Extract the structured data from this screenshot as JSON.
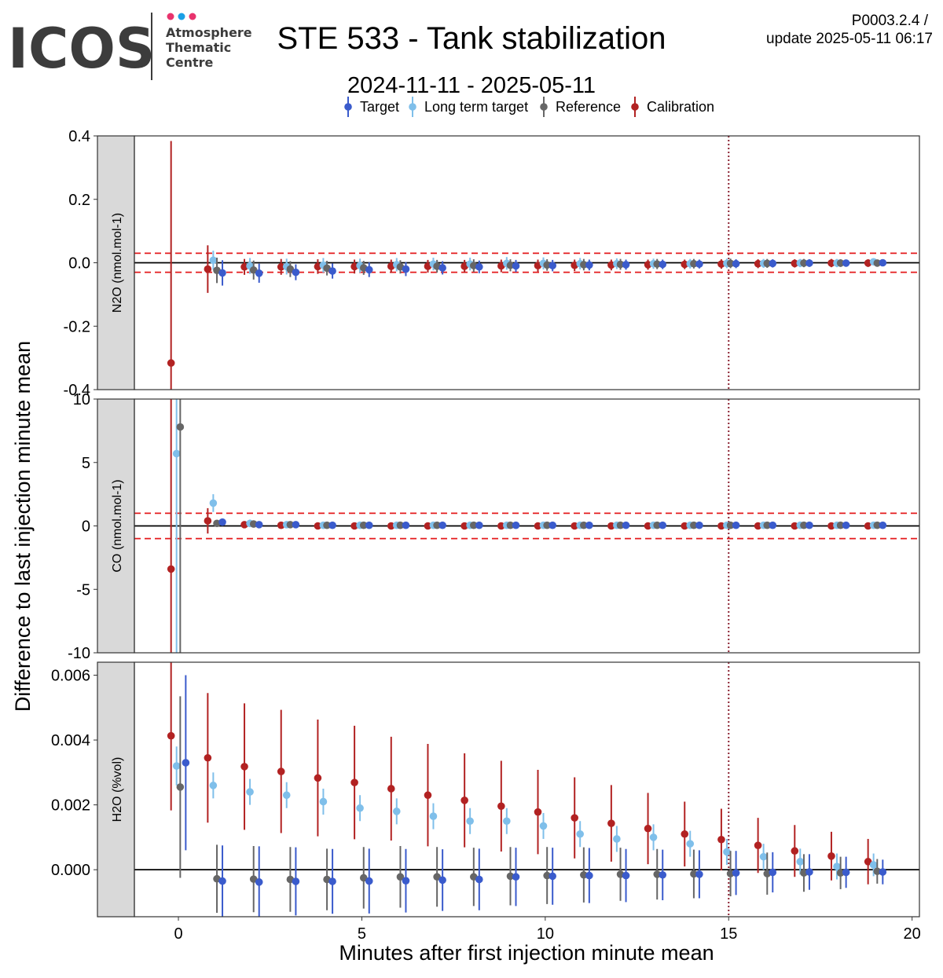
{
  "header": {
    "logo_text": "ICOS",
    "logo_sub": [
      "Atmosphere",
      "Thematic",
      "Centre"
    ],
    "logo_dot_colors": [
      "#e8336d",
      "#1aa0e6",
      "#e8336d"
    ],
    "title": "STE 533 - Tank stabilization",
    "date_range": "2024-11-11 - 2025-05-11",
    "version": "P0003.2.4 /",
    "update": "update  2025-05-11 06:17"
  },
  "colors": {
    "Target": "#3a5bcc",
    "Long term target": "#7fbfea",
    "Reference": "#666666",
    "Calibration": "#b22222",
    "threshold": "#e41a1c",
    "vline": "#8b2332"
  },
  "chart_data": {
    "type": "scatter",
    "xlabel": "Minutes after first injection minute mean",
    "ylabel": "Difference to last injection minute mean",
    "xlim": [
      -1.2,
      20.2
    ],
    "xticks": [
      0,
      5,
      10,
      15,
      20
    ],
    "xtick_labels": [
      "0",
      "5",
      "10",
      "15",
      "20"
    ],
    "vline_x": 15,
    "legend": {
      "position": "top",
      "entries": [
        "Target",
        "Long term target",
        "Reference",
        "Calibration"
      ]
    },
    "x": [
      0,
      1,
      2,
      3,
      4,
      5,
      6,
      7,
      8,
      9,
      10,
      11,
      12,
      13,
      14,
      15,
      16,
      17,
      18,
      19
    ],
    "panels": [
      {
        "strip_label": "N2O (nmol.mol-1)",
        "ylim": [
          -0.4,
          0.4
        ],
        "yticks": [
          0.4,
          0.2,
          0.0,
          -0.2,
          -0.4
        ],
        "ytick_labels": [
          "0.4",
          "0.2",
          "0.0",
          "-0.2",
          "-0.4"
        ],
        "thresholds": [
          0.03,
          -0.03
        ],
        "series": [
          {
            "name": "Calibration",
            "values": [
              -0.316,
              -0.02,
              -0.013,
              -0.013,
              -0.012,
              -0.012,
              -0.011,
              -0.011,
              -0.011,
              -0.01,
              -0.009,
              -0.008,
              -0.007,
              -0.006,
              -0.005,
              -0.004,
              -0.003,
              -0.002,
              -0.001,
              -0.001
            ],
            "err": [
              0.7,
              0.075,
              0.025,
              0.025,
              0.023,
              0.022,
              0.021,
              0.02,
              0.02,
              0.02,
              0.019,
              0.018,
              0.017,
              0.016,
              0.015,
              0.015,
              0.014,
              0.013,
              0.013,
              0.012
            ]
          },
          {
            "name": "Long term target",
            "values": [
              null,
              0.008,
              -0.01,
              -0.012,
              -0.008,
              -0.009,
              -0.006,
              -0.004,
              -0.004,
              -0.002,
              -0.002,
              -0.003,
              -0.003,
              -0.003,
              -0.003,
              -0.002,
              -0.002,
              -0.001,
              -0.001,
              0.003
            ],
            "err": [
              null,
              0.03,
              0.025,
              0.025,
              0.023,
              0.022,
              0.021,
              0.02,
              0.02,
              0.02,
              0.019,
              0.018,
              0.017,
              0.016,
              0.015,
              0.015,
              0.014,
              0.013,
              0.013,
              0.006
            ]
          },
          {
            "name": "Reference",
            "values": [
              null,
              -0.024,
              -0.023,
              -0.02,
              -0.017,
              -0.016,
              -0.013,
              -0.011,
              -0.009,
              -0.008,
              -0.007,
              -0.006,
              -0.005,
              -0.004,
              -0.003,
              -0.002,
              -0.002,
              -0.001,
              -0.001,
              -0.001
            ],
            "err": [
              null,
              0.04,
              0.03,
              0.025,
              0.023,
              0.022,
              0.021,
              0.02,
              0.02,
              0.019,
              0.018,
              0.018,
              0.017,
              0.016,
              0.015,
              0.015,
              0.014,
              0.013,
              0.012,
              0.006
            ]
          },
          {
            "name": "Target",
            "values": [
              null,
              -0.032,
              -0.033,
              -0.03,
              -0.026,
              -0.022,
              -0.02,
              -0.016,
              -0.013,
              -0.01,
              -0.009,
              -0.007,
              -0.006,
              -0.005,
              -0.004,
              -0.003,
              -0.002,
              -0.001,
              -0.001,
              0.0
            ],
            "err": [
              null,
              0.04,
              0.03,
              0.025,
              0.024,
              0.023,
              0.022,
              0.021,
              0.02,
              0.019,
              0.018,
              0.017,
              0.016,
              0.015,
              0.014,
              0.014,
              0.013,
              0.012,
              0.011,
              0.005
            ]
          }
        ]
      },
      {
        "strip_label": "CO (nmol.mol-1)",
        "ylim": [
          -10,
          10
        ],
        "yticks": [
          10,
          5,
          0,
          -5,
          -10
        ],
        "ytick_labels": [
          "10",
          "5",
          "0",
          "-5",
          "-10"
        ],
        "thresholds": [
          1,
          -1
        ],
        "series": [
          {
            "name": "Calibration",
            "values": [
              -3.4,
              0.4,
              0.1,
              0.05,
              0.0,
              0.0,
              0.0,
              0.0,
              0.0,
              0.0,
              0.0,
              0.0,
              0.0,
              0.0,
              0.0,
              0.0,
              0.0,
              0.0,
              0.0,
              0.0
            ],
            "err": [
              20,
              1.0,
              0.2,
              0.15,
              0.1,
              0.1,
              0.1,
              0.1,
              0.1,
              0.1,
              0.1,
              0.1,
              0.1,
              0.1,
              0.1,
              0.1,
              0.1,
              0.1,
              0.1,
              0.1
            ]
          },
          {
            "name": "Long term target",
            "values": [
              5.7,
              1.8,
              0.2,
              0.1,
              0.05,
              0.05,
              0.05,
              0.05,
              0.05,
              0.05,
              0.05,
              0.05,
              0.05,
              0.05,
              0.05,
              0.05,
              0.05,
              0.05,
              0.05,
              0.05
            ],
            "err": [
              20,
              0.7,
              0.3,
              0.25,
              0.2,
              0.2,
              0.2,
              0.2,
              0.2,
              0.2,
              0.2,
              0.2,
              0.2,
              0.2,
              0.2,
              0.2,
              0.2,
              0.2,
              0.2,
              0.2
            ]
          },
          {
            "name": "Reference",
            "values": [
              7.8,
              0.2,
              0.15,
              0.1,
              0.05,
              0.05,
              0.05,
              0.05,
              0.05,
              0.05,
              0.05,
              0.05,
              0.05,
              0.05,
              0.05,
              0.05,
              0.05,
              0.05,
              0.05,
              0.05
            ],
            "err": [
              20,
              0.2,
              0.15,
              0.1,
              0.1,
              0.1,
              0.1,
              0.1,
              0.1,
              0.1,
              0.1,
              0.1,
              0.1,
              0.1,
              0.1,
              0.1,
              0.1,
              0.1,
              0.1,
              0.1
            ]
          },
          {
            "name": "Target",
            "values": [
              null,
              0.3,
              0.1,
              0.1,
              0.05,
              0.05,
              0.05,
              0.05,
              0.05,
              0.05,
              0.05,
              0.05,
              0.05,
              0.05,
              0.05,
              0.05,
              0.05,
              0.05,
              0.05,
              0.05
            ],
            "err": [
              null,
              0.15,
              0.1,
              0.1,
              0.1,
              0.1,
              0.1,
              0.1,
              0.1,
              0.1,
              0.1,
              0.1,
              0.1,
              0.1,
              0.1,
              0.1,
              0.1,
              0.1,
              0.1,
              0.1
            ]
          }
        ]
      },
      {
        "strip_label": "H2O (%vol)",
        "ylim": [
          -0.00145,
          0.0064
        ],
        "yticks": [
          0.006,
          0.004,
          0.002,
          0.0
        ],
        "ytick_labels": [
          "0.006",
          "0.004",
          "0.002",
          "0.000"
        ],
        "thresholds": [],
        "series": [
          {
            "name": "Calibration",
            "values": [
              0.00413,
              0.00345,
              0.00318,
              0.00303,
              0.00283,
              0.00269,
              0.0025,
              0.0023,
              0.00214,
              0.00196,
              0.00178,
              0.0016,
              0.00143,
              0.00127,
              0.0011,
              0.00093,
              0.00075,
              0.00058,
              0.00042,
              0.00025
            ],
            "err": [
              0.0023,
              0.002,
              0.00195,
              0.0019,
              0.0018,
              0.00175,
              0.0016,
              0.00158,
              0.00145,
              0.0014,
              0.0013,
              0.00125,
              0.00118,
              0.0011,
              0.001,
              0.00095,
              0.00085,
              0.0008,
              0.00075,
              0.0007
            ]
          },
          {
            "name": "Long term target",
            "values": [
              0.0032,
              0.0026,
              0.0024,
              0.0023,
              0.0021,
              0.0019,
              0.0018,
              0.00165,
              0.0015,
              0.0015,
              0.00135,
              0.0011,
              0.00095,
              0.001,
              0.0008,
              0.00055,
              0.0004,
              0.00025,
              0.0001,
              0.00015
            ],
            "err": [
              0.0006,
              0.0004,
              0.0004,
              0.0004,
              0.0004,
              0.0004,
              0.0004,
              0.0004,
              0.0004,
              0.0004,
              0.0004,
              0.0004,
              0.0004,
              0.0004,
              0.0004,
              0.0004,
              0.0004,
              0.0004,
              0.0004,
              0.00035
            ]
          },
          {
            "name": "Reference",
            "values": [
              0.00255,
              -0.00028,
              -0.00029,
              -0.0003,
              -0.0003,
              -0.00025,
              -0.00022,
              -0.00022,
              -0.00022,
              -0.0002,
              -0.00018,
              -0.00016,
              -0.00014,
              -0.00014,
              -0.00013,
              -0.00012,
              -0.00012,
              -0.0001,
              -0.0001,
              -5e-05
            ],
            "err": [
              0.0028,
              0.00105,
              0.00102,
              0.001,
              0.00095,
              0.00095,
              0.00095,
              0.00092,
              0.0009,
              0.0009,
              0.00088,
              0.00085,
              0.00082,
              0.00078,
              0.00075,
              0.0007,
              0.00065,
              0.00058,
              0.0005,
              0.00038
            ]
          },
          {
            "name": "Target",
            "values": [
              0.0033,
              -0.00035,
              -0.00038,
              -0.00036,
              -0.00036,
              -0.00035,
              -0.00034,
              -0.00032,
              -0.0003,
              -0.00022,
              -0.0002,
              -0.00018,
              -0.00018,
              -0.00016,
              -0.00014,
              -0.0001,
              -8e-05,
              -7e-05,
              -8e-05,
              -7e-05
            ],
            "err": [
              0.0027,
              0.0011,
              0.0011,
              0.00105,
              0.001,
              0.001,
              0.00098,
              0.00095,
              0.00095,
              0.0009,
              0.00088,
              0.00085,
              0.00082,
              0.00078,
              0.00074,
              0.00068,
              0.00062,
              0.00055,
              0.00048,
              0.00038
            ]
          }
        ]
      }
    ]
  }
}
